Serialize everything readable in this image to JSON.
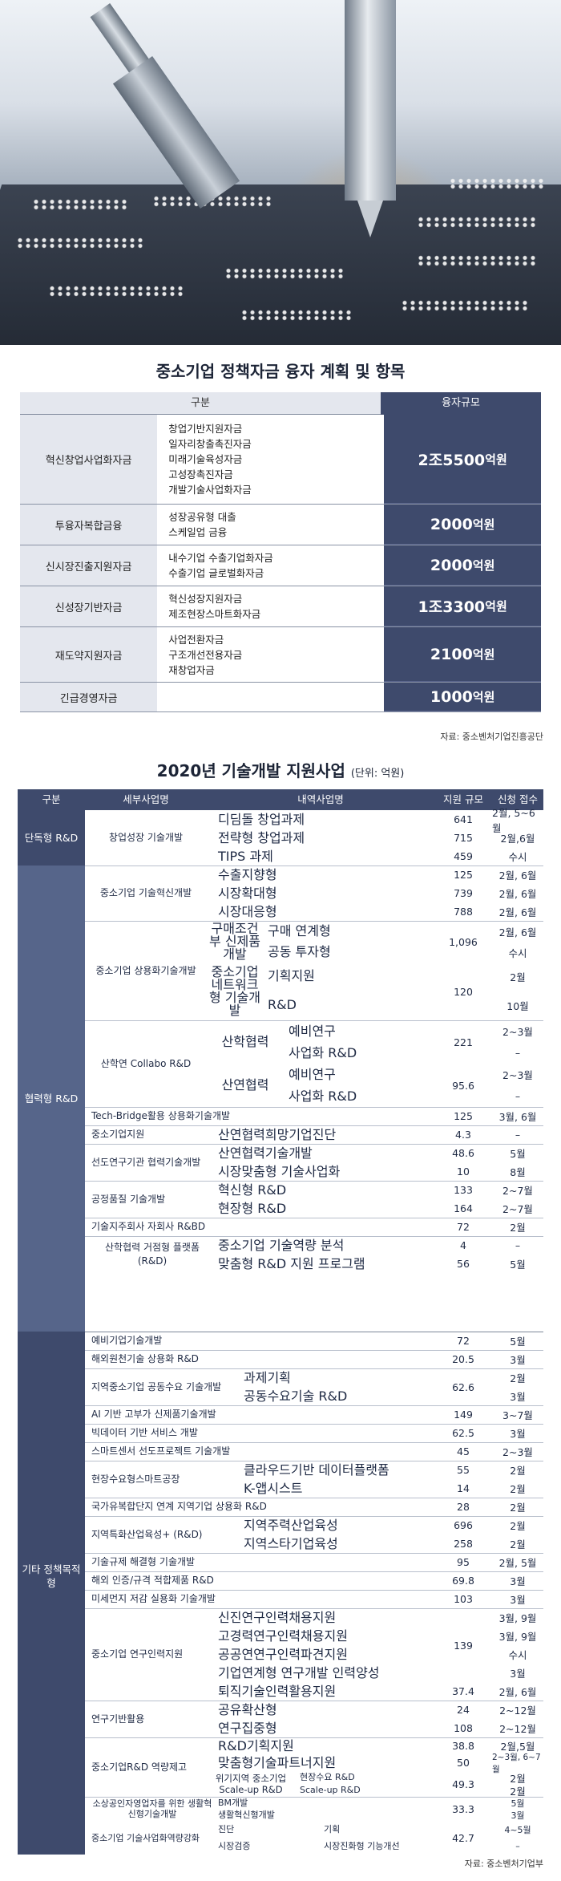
{
  "table1": {
    "title": "중소기업 정책자금 융자 계획 및 항목",
    "header": {
      "category": "구분",
      "amount": "융자규모"
    },
    "rows": [
      {
        "category": "혁신창업사업화자금",
        "items": [
          "창업기반지원자금",
          "일자리창출촉진자금",
          "미래기술육성자금",
          "고성장촉진자금",
          "개발기술사업화자금"
        ],
        "amount": "2조5500",
        "unit": "억원"
      },
      {
        "category": "투융자복합금융",
        "items": [
          "성장공유형 대출",
          "스케일업 금융"
        ],
        "amount": "2000",
        "unit": "억원"
      },
      {
        "category": "신시장진출지원자금",
        "items": [
          "내수기업 수출기업화자금",
          "수출기업 글로벌화자금"
        ],
        "amount": "2000",
        "unit": "억원"
      },
      {
        "category": "신성장기반자금",
        "items": [
          "혁신성장지원자금",
          "제조현장스마트화자금"
        ],
        "amount": "1조3300",
        "unit": "억원"
      },
      {
        "category": "재도약지원자금",
        "items": [
          "사업전환자금",
          "구조개선전용자금",
          "재창업자금"
        ],
        "amount": "2100",
        "unit": "억원"
      },
      {
        "category": "긴급경영자금",
        "items": [],
        "amount": "1000",
        "unit": "억원"
      }
    ],
    "source": "자료: 중소벤처기업진흥공단"
  },
  "table2": {
    "title": "2020년 기술개발 지원사업",
    "unit_note": "(단위: 억원)",
    "header": {
      "group": "구분",
      "program": "세부사업명",
      "sub": "내역사업명",
      "scale": "지원 규모",
      "date": "신청 접수"
    },
    "groups": [
      "단독형 R&D",
      "협력형 R&D",
      "기타 정책목적형"
    ],
    "rows": {
      "c1": {
        "name": "창업성장 기술개발",
        "subs": [
          "디딤돌 창업과제",
          "전략형 창업과제",
          "TIPS 과제"
        ],
        "vals": [
          "641",
          "715",
          "459"
        ],
        "dates": [
          "2월, 5~6월",
          "2월,6월",
          "수시"
        ]
      },
      "c2": {
        "name": "중소기업 기술혁신개발",
        "subs": [
          "수출지향형",
          "시장확대형",
          "시장대응형"
        ],
        "vals": [
          "125",
          "739",
          "788"
        ],
        "dates": [
          "2월, 6월",
          "2월, 6월",
          "2월, 6월"
        ]
      },
      "c3": {
        "name": "중소기업 상용화기술개발",
        "sub_a": "구매조건부 신제품개발",
        "sub_a1": "구매 연계형",
        "sub_a2": "공동 투자형",
        "val_a": "1,096",
        "date_a1": "2월, 6월",
        "date_a2": "수시",
        "sub_b": "중소기업 네트워크형 기술개발",
        "sub_b1": "기획지원",
        "sub_b2": "R&D",
        "val_b": "120",
        "date_b1": "2월",
        "date_b2": "10월"
      },
      "c4": {
        "name": "산학연 Collabo R&D",
        "sub_a": "산학협력",
        "sub_a1": "예비연구",
        "sub_a2": "사업화 R&D",
        "val_a": "221",
        "date_a1": "2~3월",
        "date_a2": "–",
        "sub_b": "산연협력",
        "sub_b1": "예비연구",
        "sub_b2": "사업화 R&D",
        "val_b": "95.6",
        "date_b1": "2~3월",
        "date_b2": "–"
      },
      "c5": {
        "name": "Tech-Bridge활용 상용화기술개발",
        "val": "125",
        "date": "3월, 6월"
      },
      "c6": {
        "name": "중소기업지원",
        "sub": "산연협력희망기업진단",
        "val": "4.3",
        "date": "–"
      },
      "c7": {
        "name": "선도연구기관 협력기술개발",
        "subs": [
          "산연협력기술개발",
          "시장맞춤형 기술사업화"
        ],
        "vals": [
          "48.6",
          "10"
        ],
        "dates": [
          "5월",
          "8월"
        ]
      },
      "c8": {
        "name": "공정품질 기술개발",
        "subs": [
          "혁신형 R&D",
          "현장형 R&D"
        ],
        "vals": [
          "133",
          "164"
        ],
        "dates": [
          "2~7월",
          "2~7월"
        ]
      },
      "c9": {
        "name": "기술지주회사 자회사 R&BD",
        "val": "72",
        "date": "2월"
      },
      "c10": {
        "name": "산학협력 거점형 플랫폼(R&D)",
        "subs": [
          "중소기업 기술역량 분석",
          "맞춤형 R&D 지원 프로그램"
        ],
        "vals": [
          "4",
          "56"
        ],
        "dates": [
          "–",
          "5월"
        ]
      },
      "d1": {
        "name": "예비기업기술개발",
        "val": "72",
        "date": "5월"
      },
      "d2": {
        "name": "해외원천기술 상용화 R&D",
        "val": "20.5",
        "date": "3월"
      },
      "d3": {
        "name": "지역중소기업 공동수요 기술개발",
        "subs": [
          "과제기획",
          "공동수요기술 R&D"
        ],
        "val": "62.6",
        "dates": [
          "2월",
          "3월"
        ]
      },
      "d4": {
        "name": "AI 기반 고부가 신제품기술개발",
        "val": "149",
        "date": "3~7월"
      },
      "d5": {
        "name": "빅데이터 기반 서비스 개발",
        "val": "62.5",
        "date": "3월"
      },
      "d6": {
        "name": "스마트센서 선도프로젝트 기술개발",
        "val": "45",
        "date": "2~3월"
      },
      "d7": {
        "name": "현장수요형스마트공장",
        "subs": [
          "클라우드기반 데이터플랫폼",
          "K-앱시스트"
        ],
        "vals": [
          "55",
          "14"
        ],
        "dates": [
          "2월",
          "2월"
        ]
      },
      "d8": {
        "name": "국가유복합단지 연계 지역기업 상용화 R&D",
        "val": "28",
        "date": "2월"
      },
      "d9": {
        "name": "지역특화산업육성+ (R&D)",
        "subs": [
          "지역주력산업육성",
          "지역스타기업육성"
        ],
        "vals": [
          "696",
          "258"
        ],
        "dates": [
          "2월",
          "2월"
        ]
      },
      "d10": {
        "name": "기술규제 해결형 기술개발",
        "val": "95",
        "date": "2월, 5월"
      },
      "d11": {
        "name": "해외 인증/규격 적합제품 R&D",
        "val": "69.8",
        "date": "3월"
      },
      "d12": {
        "name": "미세먼지 저감 실용화 기술개발",
        "val": "103",
        "date": "3월"
      },
      "d13": {
        "name": "중소기업 연구인력지원",
        "subs": [
          "신진연구인력채용지원",
          "고경력연구인력채용지원",
          "공공연연구인력파견지원",
          "기업연계형 연구개발 인력양성",
          "퇴직기술인력활용지원"
        ],
        "val_a": "139",
        "val_b": "37.4",
        "dates": [
          "3월, 9월",
          "3월, 9월",
          "수시",
          "3월",
          "2월, 6월"
        ]
      },
      "d14": {
        "name": "연구기반활용",
        "subs": [
          "공유확산형",
          "연구집중형"
        ],
        "vals": [
          "24",
          "108"
        ],
        "dates": [
          "2~12월",
          "2~12월"
        ]
      },
      "d15": {
        "name": "중소기업R&D 역량제고",
        "subs": [
          "R&D기획지원",
          "맞춤형기술파트너지원"
        ],
        "vals": [
          "38.8",
          "50"
        ],
        "dates": [
          "2월,5월",
          "2~3월, 6~7월"
        ],
        "sub_c": "위기지역 중소기업 Scale-up R&D",
        "sub_c1": "현장수요 R&D",
        "sub_c2": "Scale-up R&D",
        "val_c": "49.3",
        "dates_c": [
          "2월",
          "2월"
        ]
      },
      "d16": {
        "name": "소상공인자영업자를 위한 생활혁신형기술개발",
        "subs": [
          "BM개발",
          "생활혁신형개발"
        ],
        "val": "33.3",
        "dates": [
          "5월",
          "3월"
        ]
      },
      "d17": {
        "name": "중소기업 기술사업화역량강화",
        "subs": [
          "진단",
          "기획",
          "시장검증",
          "시장진화형 기능개선"
        ],
        "val": "42.7",
        "dates": [
          "4~5월",
          "–",
          "–",
          "–"
        ]
      }
    },
    "source": "자료: 중소벤처기업부"
  }
}
